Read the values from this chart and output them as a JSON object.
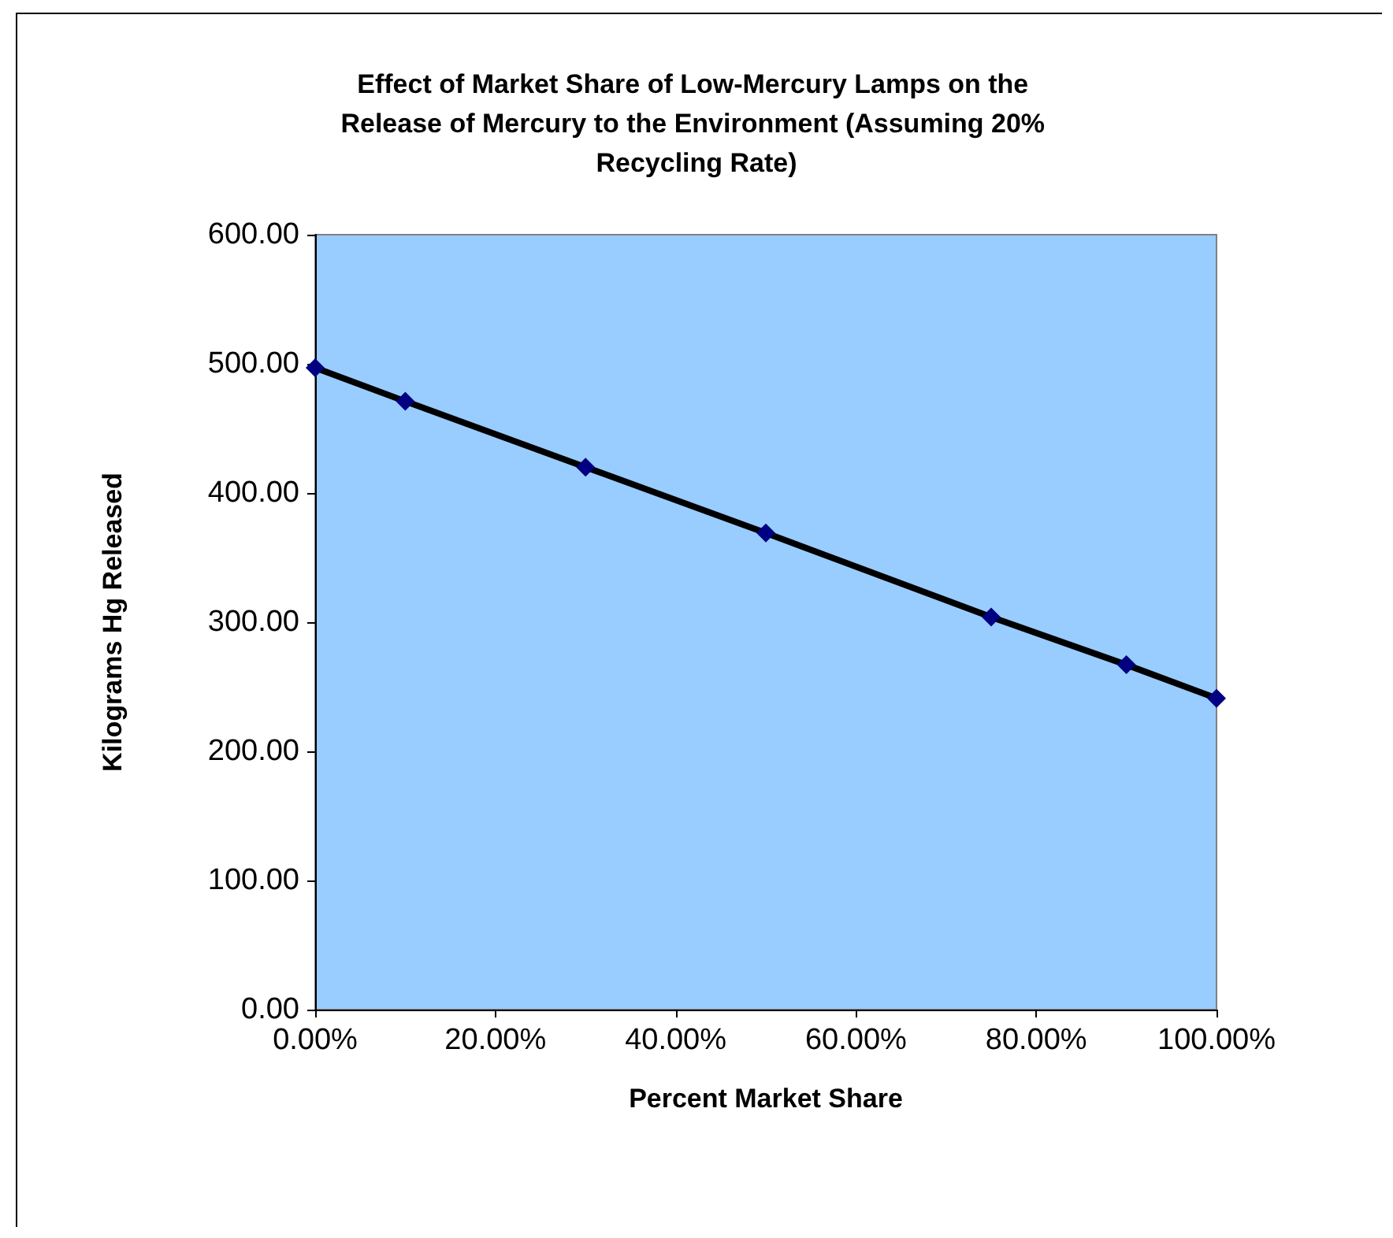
{
  "chart_data": {
    "type": "line",
    "title": "Effect of Market Share of Low-Mercury Lamps on the Release of Mercury to the Environment (Assuming 20% Recycling Rate)",
    "xlabel": "Percent Market Share",
    "ylabel": "Kilograms Hg Released",
    "x": [
      0,
      0.1,
      0.3,
      0.5,
      0.75,
      0.9,
      1
    ],
    "series": [
      {
        "color": "#000080",
        "values": [
          497,
          471,
          420,
          369,
          304,
          267,
          241
        ]
      }
    ],
    "xlim": [
      0,
      1
    ],
    "xticks": [
      {
        "value": 0,
        "label": "0.00%"
      },
      {
        "value": 0.2,
        "label": "20.00%"
      },
      {
        "value": 0.4,
        "label": "40.00%"
      },
      {
        "value": 0.6,
        "label": "60.00%"
      },
      {
        "value": 0.8,
        "label": "80.00%"
      },
      {
        "value": 1,
        "label": "100.00%"
      }
    ],
    "ylim": [
      0,
      600
    ],
    "yticks": [
      {
        "value": 0,
        "label": "0.00"
      },
      {
        "value": 100,
        "label": "100.00"
      },
      {
        "value": 200,
        "label": "200.00"
      },
      {
        "value": 300,
        "label": "300.00"
      },
      {
        "value": 400,
        "label": "400.00"
      },
      {
        "value": 500,
        "label": "500.00"
      },
      {
        "value": 600,
        "label": "600.00"
      }
    ],
    "grid": false,
    "marker": "diamond",
    "line_style": "solid"
  }
}
